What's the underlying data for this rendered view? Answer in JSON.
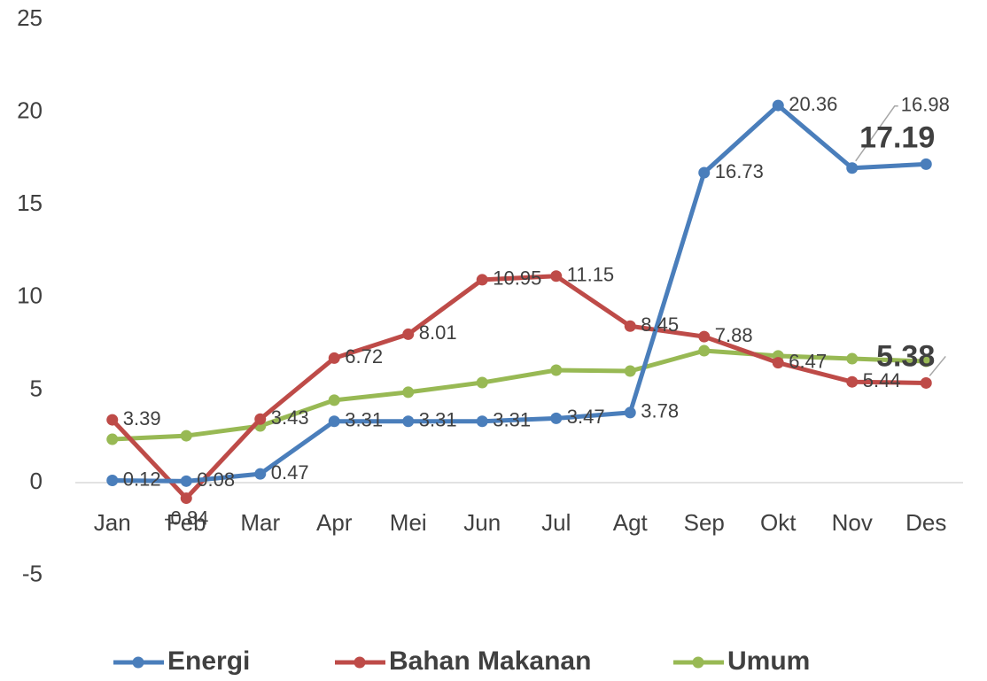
{
  "chart_data": {
    "type": "line",
    "categories": [
      "Jan",
      "Feb",
      "Mar",
      "Apr",
      "Mei",
      "Jun",
      "Jul",
      "Agt",
      "Sep",
      "Okt",
      "Nov",
      "Des"
    ],
    "series": [
      {
        "name": "Energi",
        "color": "#4a7ebb",
        "show_labels": true,
        "values": [
          0.12,
          0.08,
          0.47,
          3.31,
          3.31,
          3.31,
          3.47,
          3.78,
          16.73,
          20.36,
          16.98,
          17.19
        ]
      },
      {
        "name": "Bahan Makanan",
        "color": "#be4b48",
        "show_labels": true,
        "values": [
          3.39,
          -0.84,
          3.43,
          6.72,
          8.01,
          10.95,
          11.15,
          8.45,
          7.88,
          6.47,
          5.44,
          5.38
        ]
      },
      {
        "name": "Umum",
        "color": "#98b954",
        "show_labels": false,
        "values": [
          2.34,
          2.53,
          3.06,
          4.45,
          4.88,
          5.4,
          6.07,
          6.02,
          7.12,
          6.84,
          6.69,
          6.55
        ]
      }
    ],
    "ylim": [
      -5,
      25
    ],
    "yticks": [
      -5,
      0,
      5,
      10,
      15,
      20,
      25
    ],
    "grid": false
  }
}
